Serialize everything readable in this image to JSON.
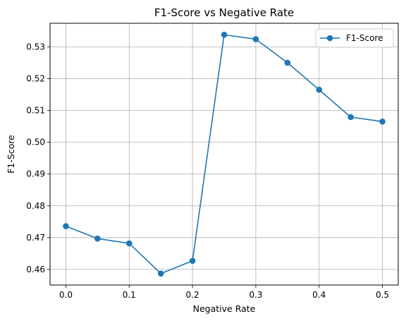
{
  "chart_data": {
    "type": "line",
    "title": "F1-Score vs Negative Rate",
    "xlabel": "Negative Rate",
    "ylabel": "F1-Score",
    "xlim": [
      -0.025,
      0.525
    ],
    "ylim": [
      0.4551,
      0.5374
    ],
    "x_ticks": [
      0.0,
      0.1,
      0.2,
      0.3,
      0.4,
      0.5
    ],
    "x_tick_labels": [
      "0.0",
      "0.1",
      "0.2",
      "0.3",
      "0.4",
      "0.5"
    ],
    "y_ticks": [
      0.46,
      0.47,
      0.48,
      0.49,
      0.5,
      0.51,
      0.52,
      0.53
    ],
    "y_tick_labels": [
      "0.46",
      "0.47",
      "0.48",
      "0.49",
      "0.50",
      "0.51",
      "0.52",
      "0.53"
    ],
    "grid": true,
    "legend_position": "top-right",
    "series": [
      {
        "name": "F1-Score",
        "color": "#1f77b4",
        "marker": "circle",
        "x": [
          0.0,
          0.05,
          0.1,
          0.15,
          0.2,
          0.25,
          0.3,
          0.35,
          0.4,
          0.45,
          0.5
        ],
        "y": [
          0.4736,
          0.4697,
          0.4682,
          0.4587,
          0.4627,
          0.5338,
          0.5324,
          0.525,
          0.5165,
          0.5079,
          0.5065
        ]
      }
    ]
  }
}
